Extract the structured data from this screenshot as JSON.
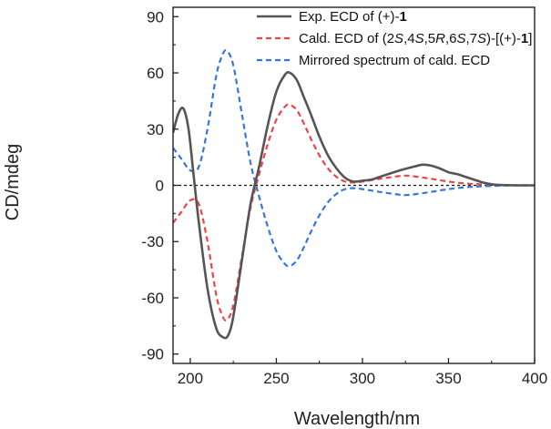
{
  "chart_data": {
    "type": "line",
    "title": "",
    "xlabel": "Wavelength/nm",
    "ylabel": "CD/mdeg",
    "xlim": [
      190,
      400
    ],
    "ylim": [
      -95,
      95
    ],
    "x_ticks": [
      200,
      250,
      300,
      350,
      400
    ],
    "x_tick_labels": [
      "200",
      "250",
      "300",
      "350",
      "400"
    ],
    "y_ticks": [
      90,
      60,
      30,
      0,
      -30,
      -60,
      -90
    ],
    "y_tick_labels": [
      "90",
      "60",
      "30",
      "0",
      "-30",
      "-60",
      "-90"
    ],
    "zero_line": true,
    "grid": false,
    "legend_position": "top-right",
    "series": [
      {
        "name": "Exp. ECD of (+)-1",
        "legend_parts": [
          {
            "t": "Exp. ECD of (+)-"
          },
          {
            "t": "1",
            "b": true
          }
        ],
        "color": "#555555",
        "style": "solid",
        "x": [
          190,
          193,
          196,
          199,
          202,
          205,
          210,
          215,
          219,
          222,
          225,
          230,
          235,
          240,
          245,
          250,
          255,
          258,
          262,
          266,
          270,
          275,
          280,
          285,
          290,
          295,
          300,
          305,
          310,
          320,
          330,
          335,
          340,
          345,
          350,
          355,
          360,
          365,
          370,
          375,
          380,
          385,
          390,
          395,
          400
        ],
        "y": [
          28,
          38,
          41,
          30,
          5,
          -20,
          -55,
          -76,
          -81,
          -80,
          -70,
          -40,
          -10,
          10,
          32,
          50,
          59,
          60,
          56,
          47,
          38,
          26,
          16,
          9,
          4,
          2,
          2.5,
          3,
          4.5,
          7.5,
          10,
          11,
          10.5,
          9,
          7,
          6,
          4.5,
          3,
          1.5,
          0.6,
          0.2,
          0.1,
          0,
          0,
          0
        ]
      },
      {
        "name": "Cald. ECD of (2S,4S,5R,6S,7S)-[(+)-1]",
        "legend_parts": [
          {
            "t": "Cald. ECD of (2"
          },
          {
            "t": "S",
            "i": true
          },
          {
            "t": ",4"
          },
          {
            "t": "S",
            "i": true
          },
          {
            "t": ",5"
          },
          {
            "t": "R",
            "i": true
          },
          {
            "t": ",6"
          },
          {
            "t": "S",
            "i": true
          },
          {
            "t": ",7"
          },
          {
            "t": "S",
            "i": true
          },
          {
            "t": ")-[(+)-"
          },
          {
            "t": "1",
            "b": true
          },
          {
            "t": "]"
          }
        ],
        "color": "#ee4444",
        "style": "dashed",
        "x": [
          190,
          195,
          200,
          205,
          210,
          215,
          218,
          221,
          225,
          230,
          235,
          240,
          245,
          250,
          255,
          258,
          262,
          266,
          270,
          275,
          280,
          285,
          290,
          295,
          300,
          310,
          320,
          325,
          330,
          340,
          350,
          360,
          370,
          380,
          390,
          400
        ],
        "y": [
          -20,
          -14,
          -8,
          -10,
          -30,
          -58,
          -68,
          -72,
          -64,
          -38,
          -12,
          6,
          22,
          35,
          42,
          43,
          40,
          33,
          25,
          16,
          9,
          4.5,
          2,
          1.5,
          2,
          3.5,
          4.8,
          5.2,
          4.8,
          3.5,
          2,
          1,
          0.5,
          0.2,
          0,
          0
        ]
      },
      {
        "name": "Mirrored spectrum of cald. ECD",
        "legend_parts": [
          {
            "t": "Mirrored spectrum of cald. ECD"
          }
        ],
        "color": "#3377dd",
        "style": "dashed",
        "x": [
          190,
          195,
          200,
          205,
          210,
          215,
          218,
          221,
          225,
          230,
          235,
          240,
          245,
          250,
          255,
          258,
          262,
          266,
          270,
          275,
          280,
          285,
          290,
          295,
          300,
          310,
          320,
          325,
          330,
          340,
          350,
          360,
          370,
          380,
          390,
          400
        ],
        "y": [
          20,
          14,
          8,
          10,
          30,
          58,
          68,
          72,
          64,
          38,
          12,
          -6,
          -22,
          -35,
          -42,
          -43,
          -40,
          -33,
          -25,
          -16,
          -9,
          -4.5,
          -2,
          -1.5,
          -2,
          -3.5,
          -4.8,
          -5.2,
          -4.8,
          -3.5,
          -2,
          -1,
          -0.5,
          -0.2,
          0,
          0
        ]
      }
    ]
  }
}
